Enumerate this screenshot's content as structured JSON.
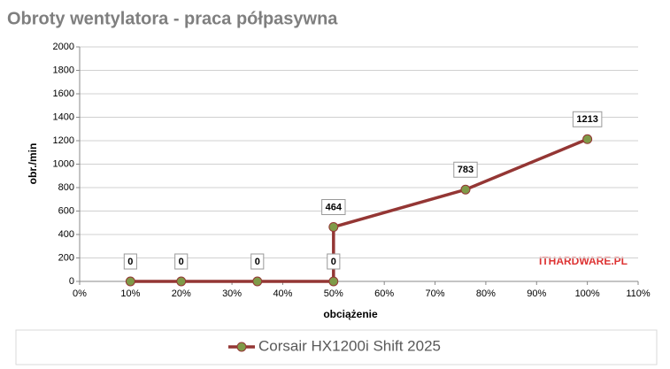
{
  "chart_data": {
    "type": "line",
    "title": "Obroty wentylatora - praca półpasywna",
    "x_label": "obciążenie",
    "y_label": "obr./min",
    "x": [
      10,
      20,
      35,
      50,
      50,
      76,
      100
    ],
    "series": [
      {
        "name": "Corsair HX1200i Shift 2025",
        "color": "#943634",
        "marker_color": "#7f9a48",
        "values": [
          0,
          0,
          0,
          0,
          464,
          783,
          1213
        ]
      }
    ],
    "xlim": [
      0,
      110
    ],
    "xticks": [
      {
        "value": 0,
        "label": "0%"
      },
      {
        "value": 10,
        "label": "10%"
      },
      {
        "value": 20,
        "label": "20%"
      },
      {
        "value": 30,
        "label": "30%"
      },
      {
        "value": 40,
        "label": "40%"
      },
      {
        "value": 50,
        "label": "50%"
      },
      {
        "value": 60,
        "label": "60%"
      },
      {
        "value": 70,
        "label": "70%"
      },
      {
        "value": 80,
        "label": "80%"
      },
      {
        "value": 90,
        "label": "90%"
      },
      {
        "value": 100,
        "label": "100%"
      },
      {
        "value": 110,
        "label": "110%"
      }
    ],
    "ylim": [
      0,
      2000
    ],
    "yticks": [
      0,
      200,
      400,
      600,
      800,
      1000,
      1200,
      1400,
      1600,
      1800,
      2000
    ],
    "grid": true,
    "legend": "bottom",
    "watermark": "ITHARDWARE.PL"
  }
}
